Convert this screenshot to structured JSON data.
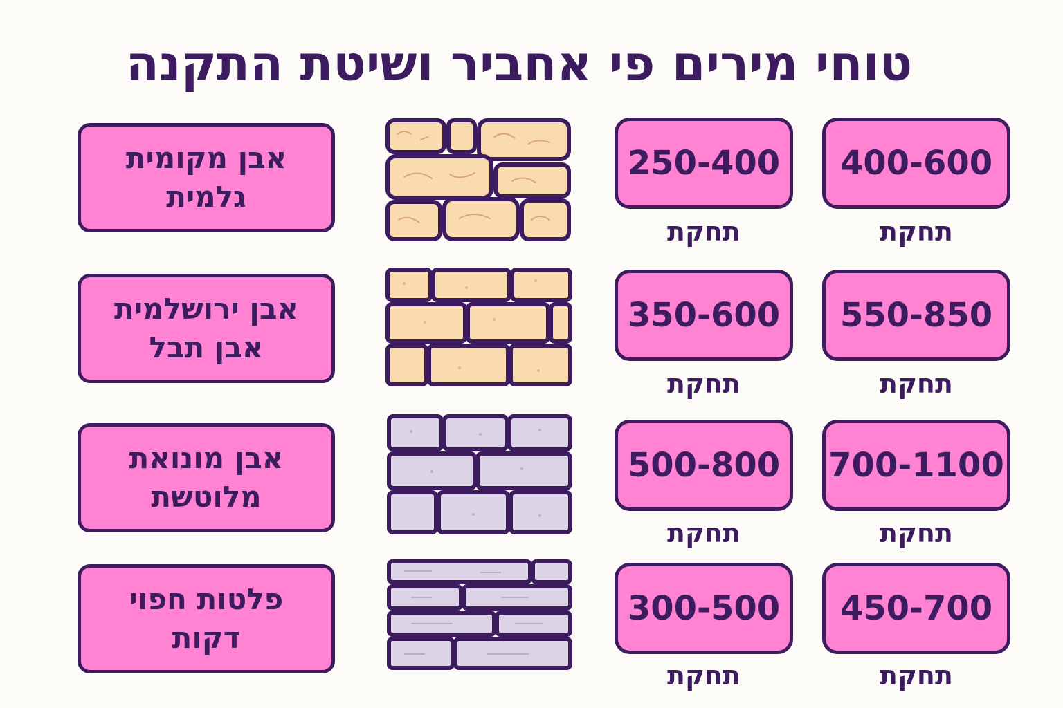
{
  "title": "טוחי מירים פי אחביר ושיטת התקנה",
  "colors": {
    "box_fill": "#ff83d2",
    "outline": "#3c1c5e",
    "stone_beige": "#fadbb0",
    "stone_lavender": "#dcd3e6"
  },
  "rows": [
    {
      "material_line1": "אבן מקומית",
      "material_line2": "גלמית",
      "wall_icon": "rustic-stone-wall-icon",
      "range_a": "250-400",
      "range_b": "400-600",
      "unit_a": "תחקת",
      "unit_b": "תחקת"
    },
    {
      "material_line1": "אבן ירושלמית",
      "material_line2": "אבן תבל",
      "wall_icon": "jerusalem-stone-wall-icon",
      "range_a": "350-600",
      "range_b": "550-850",
      "unit_a": "תחקת",
      "unit_b": "תחקת"
    },
    {
      "material_line1": "אבן מונואת",
      "material_line2": "מלוטשת",
      "wall_icon": "polished-stone-wall-icon",
      "range_a": "500-800",
      "range_b": "700-1100",
      "unit_a": "תחקת",
      "unit_b": "תחקת"
    },
    {
      "material_line1": "פלטות חפוי",
      "material_line2": "דקות",
      "wall_icon": "thin-cladding-wall-icon",
      "range_a": "300-500",
      "range_b": "450-700",
      "unit_a": "תחקת",
      "unit_b": "תחקת"
    }
  ]
}
